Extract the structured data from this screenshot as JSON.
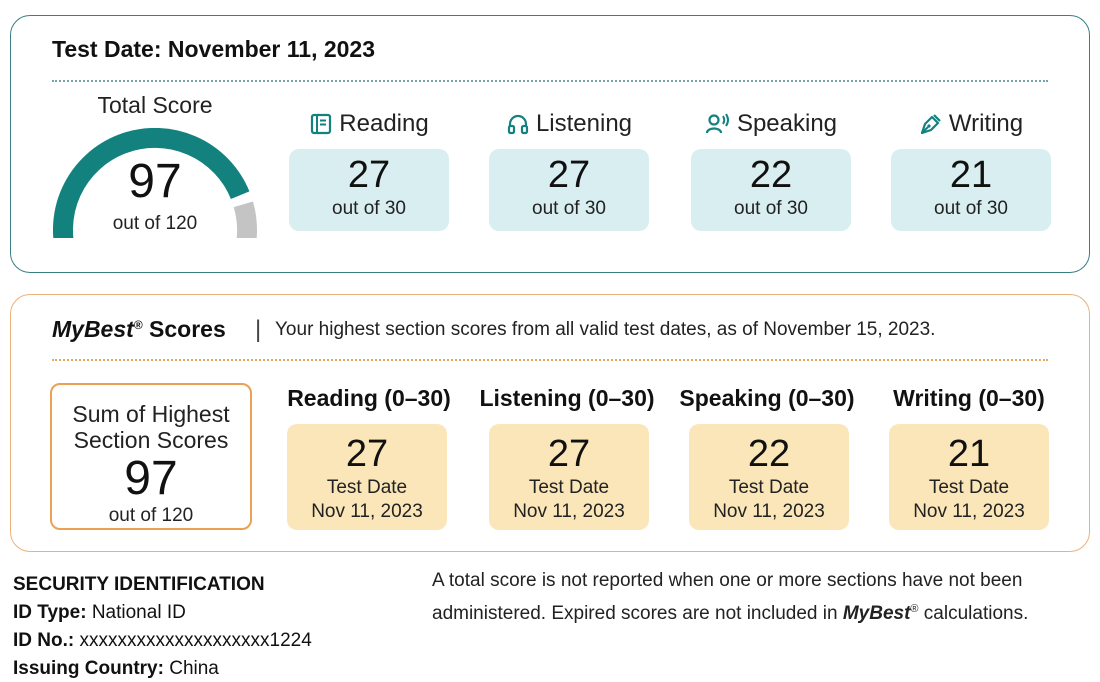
{
  "top": {
    "test_date": "Test Date: November 11, 2023",
    "total_label": "Total Score",
    "total_score": "97",
    "total_out_of": "out of 120",
    "total_fraction": 0.808,
    "sections": [
      {
        "name": "Reading",
        "icon": "book-icon",
        "score": "27",
        "out_of": "out of 30"
      },
      {
        "name": "Listening",
        "icon": "headphones-icon",
        "score": "27",
        "out_of": "out of 30"
      },
      {
        "name": "Speaking",
        "icon": "speaking-person-icon",
        "score": "22",
        "out_of": "out of 30"
      },
      {
        "name": "Writing",
        "icon": "pen-nib-icon",
        "score": "21",
        "out_of": "out of 30"
      }
    ]
  },
  "mybest": {
    "brand": "MyBest",
    "reg": "®",
    "title_suffix": " Scores",
    "separator": "|",
    "description": "Your highest section scores from all valid test dates, as of November 15, 2023.",
    "sum_label_line1": "Sum of Highest",
    "sum_label_line2": "Section Scores",
    "sum_value": "97",
    "sum_out_of": "out of 120",
    "sections": [
      {
        "name": "Reading (0–30)",
        "score": "27",
        "test_date_label": "Test Date",
        "test_date": "Nov 11, 2023"
      },
      {
        "name": "Listening (0–30)",
        "score": "27",
        "test_date_label": "Test Date",
        "test_date": "Nov 11, 2023"
      },
      {
        "name": "Speaking (0–30)",
        "score": "22",
        "test_date_label": "Test Date",
        "test_date": "Nov 11, 2023"
      },
      {
        "name": "Writing (0–30)",
        "score": "21",
        "test_date_label": "Test Date",
        "test_date": "Nov 11, 2023"
      }
    ]
  },
  "security": {
    "heading": "SECURITY IDENTIFICATION",
    "id_type_label": "ID Type:",
    "id_type": "National ID",
    "id_no_label": "ID No.:",
    "id_no": "xxxxxxxxxxxxxxxxxxxx1224",
    "country_label": "Issuing Country:",
    "country": "China"
  },
  "note": {
    "part1": "A total score is not reported when one or more sections have not been administered. Expired scores are not included in ",
    "brand": "MyBest",
    "reg": "®",
    "part2": " calculations."
  },
  "colors": {
    "teal": "#13827f",
    "gauge_rest": "#c4c4c4",
    "teal_box": "#d9eef0",
    "orange_border": "#e9a154",
    "orange_box": "#fae6b8"
  }
}
